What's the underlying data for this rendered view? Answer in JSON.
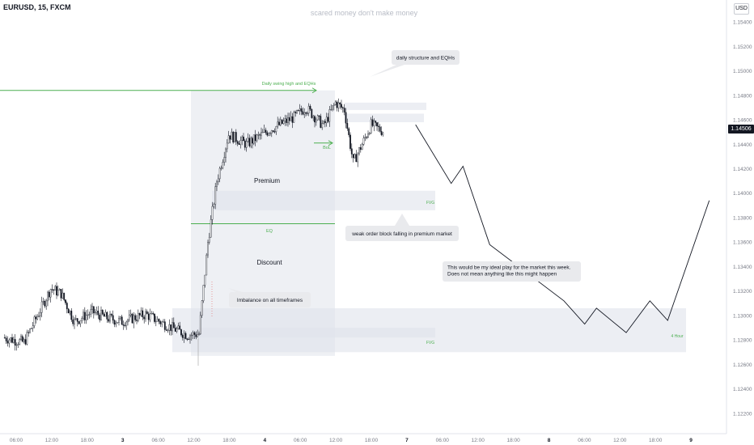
{
  "header": {
    "symbol": "EURUSD, 15, FXCM",
    "watermark": "scared money don't make money",
    "currency": "USD",
    "last_price": "1.14506"
  },
  "colors": {
    "background": "#ffffff",
    "candle": "#131722",
    "zone_fill": "#e0e3eb",
    "annotation_green": "#4caf50",
    "callout_fill": "#e9eaed",
    "axis_text": "#787b86"
  },
  "chart_data": {
    "type": "candlestick",
    "symbol": "EURUSD",
    "timeframe": "15",
    "x_ticks": [
      "06:00",
      "12:00",
      "18:00",
      "3",
      "06:00",
      "12:00",
      "18:00",
      "4",
      "06:00",
      "12:00",
      "18:00",
      "7",
      "06:00",
      "12:00",
      "18:00",
      "8",
      "06:00",
      "12:00",
      "18:00",
      "9"
    ],
    "y_ticks": [
      "1.15400",
      "1.15200",
      "1.15000",
      "1.14800",
      "1.14600",
      "1.14400",
      "1.14200",
      "1.14000",
      "1.13800",
      "1.13600",
      "1.13400",
      "1.13200",
      "1.13000",
      "1.12800",
      "1.12600",
      "1.12400",
      "1.12200"
    ],
    "ylim": [
      1.1212,
      1.1546
    ],
    "last_price": 1.14506,
    "price_path": [
      {
        "t": "2 03:00",
        "p": 1.1282
      },
      {
        "t": "2 06:30",
        "p": 1.1278
      },
      {
        "t": "2 09:00",
        "p": 1.1302
      },
      {
        "t": "2 11:00",
        "p": 1.1322
      },
      {
        "t": "2 12:45",
        "p": 1.1318
      },
      {
        "t": "2 15:00",
        "p": 1.1295
      },
      {
        "t": "2 18:00",
        "p": 1.1303
      },
      {
        "t": "2 20:30",
        "p": 1.1298
      },
      {
        "t": "2 23:00",
        "p": 1.1295
      },
      {
        "t": "3 03:00",
        "p": 1.1301
      },
      {
        "t": "3 07:00",
        "p": 1.1291
      },
      {
        "t": "3 10:00",
        "p": 1.1284
      },
      {
        "t": "3 12:00",
        "p": 1.1285
      },
      {
        "t": "3 13:30",
        "p": 1.136
      },
      {
        "t": "3 15:00",
        "p": 1.141
      },
      {
        "t": "3 17:00",
        "p": 1.1448
      },
      {
        "t": "3 20:00",
        "p": 1.144
      },
      {
        "t": "4 00:00",
        "p": 1.1452
      },
      {
        "t": "4 04:00",
        "p": 1.1462
      },
      {
        "t": "4 06:00",
        "p": 1.147
      },
      {
        "t": "4 09:00",
        "p": 1.1455
      },
      {
        "t": "4 11:00",
        "p": 1.1474
      },
      {
        "t": "4 12:30",
        "p": 1.1468
      },
      {
        "t": "4 14:00",
        "p": 1.1425
      },
      {
        "t": "4 15:30",
        "p": 1.144
      },
      {
        "t": "4 17:00",
        "p": 1.1456
      },
      {
        "t": "4 19:00",
        "p": 1.14506
      }
    ],
    "projection": [
      {
        "t": "7 00:30",
        "p": 1.1456
      },
      {
        "t": "7 06:30",
        "p": 1.1408
      },
      {
        "t": "7 08:30",
        "p": 1.1422
      },
      {
        "t": "7 13:00",
        "p": 1.1358
      },
      {
        "t": "8 01:30",
        "p": 1.1312
      },
      {
        "t": "8 05:00",
        "p": 1.1293
      },
      {
        "t": "8 07:00",
        "p": 1.1306
      },
      {
        "t": "8 12:00",
        "p": 1.1286
      },
      {
        "t": "8 16:00",
        "p": 1.1312
      },
      {
        "t": "8 19:00",
        "p": 1.1296
      },
      {
        "t": "9 02:00",
        "p": 1.1394
      }
    ],
    "levels": [
      {
        "label": "Daily swing high and EQHs",
        "price": 1.1484
      },
      {
        "label": "EQ",
        "price": 1.1375
      },
      {
        "label": "BoL",
        "price": 1.1441
      }
    ],
    "zones": [
      {
        "label": "Premium",
        "top": 1.1484,
        "bottom": 1.1375
      },
      {
        "label": "Discount",
        "top": 1.1375,
        "bottom": 1.1267
      },
      {
        "label": "FVG",
        "top": 1.1402,
        "bottom": 1.1386
      },
      {
        "label": "FVG",
        "top": 1.129,
        "bottom": 1.1282
      },
      {
        "label": "4 Hour",
        "top": 1.1306,
        "bottom": 1.127
      },
      {
        "label": "",
        "top": 1.1474,
        "bottom": 1.1468
      },
      {
        "label": "",
        "top": 1.1465,
        "bottom": 1.1458
      }
    ],
    "annotations": [
      "daily structure and EQHs",
      "weak order block falling in premium market",
      "Imbalance on all timeframes",
      "This would be my ideal play for the market this week.",
      "Does not mean anything like this might happen"
    ]
  }
}
